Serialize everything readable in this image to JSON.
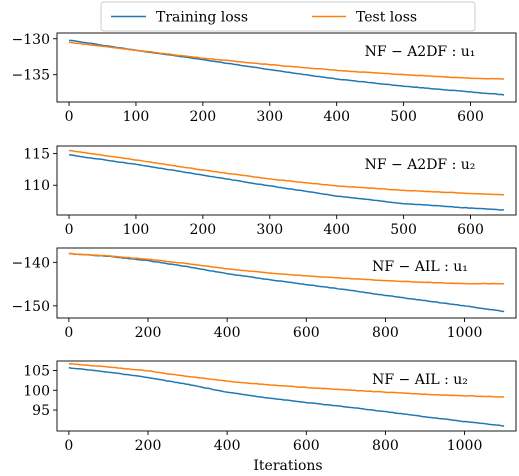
{
  "legend": {
    "training_label": "Training loss",
    "test_label": "Test loss"
  },
  "xlabel": "Iterations",
  "colors": {
    "training": "#1f77b4",
    "test": "#ff7f0e"
  },
  "chart_data": [
    {
      "type": "line",
      "annotation": "NF − A2DF : u₁",
      "xlim": [
        -18,
        668
      ],
      "ylim": [
        -138.8,
        -129.2
      ],
      "xticks": [
        0,
        100,
        200,
        300,
        400,
        500,
        600
      ],
      "yticks": [
        -130,
        -135
      ],
      "ytick_labels": [
        "−130",
        "−135"
      ],
      "series": [
        {
          "name": "Training loss",
          "x": [
            0,
            100,
            200,
            300,
            400,
            500,
            600,
            650
          ],
          "y": [
            -130.2,
            -131.6,
            -132.9,
            -134.3,
            -135.6,
            -136.6,
            -137.4,
            -137.8
          ]
        },
        {
          "name": "Test loss",
          "x": [
            0,
            100,
            200,
            300,
            400,
            500,
            600,
            650
          ],
          "y": [
            -130.5,
            -131.6,
            -132.7,
            -133.6,
            -134.4,
            -135.0,
            -135.5,
            -135.6
          ]
        }
      ]
    },
    {
      "type": "line",
      "annotation": "NF − A2DF : u₂",
      "xlim": [
        -18,
        668
      ],
      "ylim": [
        105.3,
        116.2
      ],
      "xticks": [
        0,
        100,
        200,
        300,
        400,
        500,
        600
      ],
      "yticks": [
        115,
        110
      ],
      "ytick_labels": [
        "115",
        "110"
      ],
      "series": [
        {
          "name": "Training loss",
          "x": [
            0,
            100,
            200,
            300,
            400,
            500,
            600,
            650
          ],
          "y": [
            114.8,
            113.3,
            111.6,
            109.9,
            108.3,
            107.1,
            106.4,
            106.1
          ]
        },
        {
          "name": "Test loss",
          "x": [
            0,
            100,
            200,
            300,
            400,
            500,
            600,
            650
          ],
          "y": [
            115.5,
            114.0,
            112.4,
            111.0,
            109.9,
            109.2,
            108.7,
            108.5
          ]
        }
      ]
    },
    {
      "type": "line",
      "annotation": "NF − AIL : u₁",
      "xlim": [
        -30,
        1130
      ],
      "ylim": [
        -152.8,
        -136.7
      ],
      "xticks": [
        0,
        200,
        400,
        600,
        800,
        1000
      ],
      "yticks": [
        -140,
        -150
      ],
      "ytick_labels": [
        "−140",
        "−150"
      ],
      "series": [
        {
          "name": "Training loss",
          "x": [
            0,
            100,
            200,
            300,
            400,
            500,
            600,
            700,
            800,
            900,
            1000,
            1100
          ],
          "y": [
            -138.0,
            -138.6,
            -139.6,
            -141.0,
            -142.6,
            -143.9,
            -145.1,
            -146.3,
            -147.6,
            -148.8,
            -150.0,
            -151.3
          ]
        },
        {
          "name": "Test loss",
          "x": [
            0,
            100,
            200,
            300,
            400,
            500,
            600,
            700,
            800,
            900,
            1000,
            1100
          ],
          "y": [
            -138.0,
            -138.5,
            -139.3,
            -140.3,
            -141.5,
            -142.4,
            -143.1,
            -143.7,
            -144.2,
            -144.6,
            -144.9,
            -144.9
          ]
        }
      ]
    },
    {
      "type": "line",
      "annotation": "NF − AIL : u₂",
      "xlim": [
        -30,
        1130
      ],
      "ylim": [
        89.7,
        107.4
      ],
      "xticks": [
        0,
        200,
        400,
        600,
        800,
        1000
      ],
      "yticks": [
        105,
        100,
        95
      ],
      "ytick_labels": [
        "105",
        "100",
        "95"
      ],
      "series": [
        {
          "name": "Training loss",
          "x": [
            0,
            100,
            200,
            300,
            400,
            500,
            600,
            700,
            800,
            900,
            1000,
            1100
          ],
          "y": [
            105.7,
            104.6,
            103.2,
            101.5,
            99.5,
            98.1,
            96.9,
            95.8,
            94.6,
            93.3,
            92.1,
            91.0
          ]
        },
        {
          "name": "Test loss",
          "x": [
            0,
            100,
            200,
            300,
            400,
            500,
            600,
            700,
            800,
            900,
            1000,
            1100
          ],
          "y": [
            106.7,
            105.9,
            104.9,
            103.5,
            102.3,
            101.4,
            100.7,
            100.1,
            99.5,
            99.0,
            98.6,
            98.3
          ]
        }
      ]
    }
  ]
}
